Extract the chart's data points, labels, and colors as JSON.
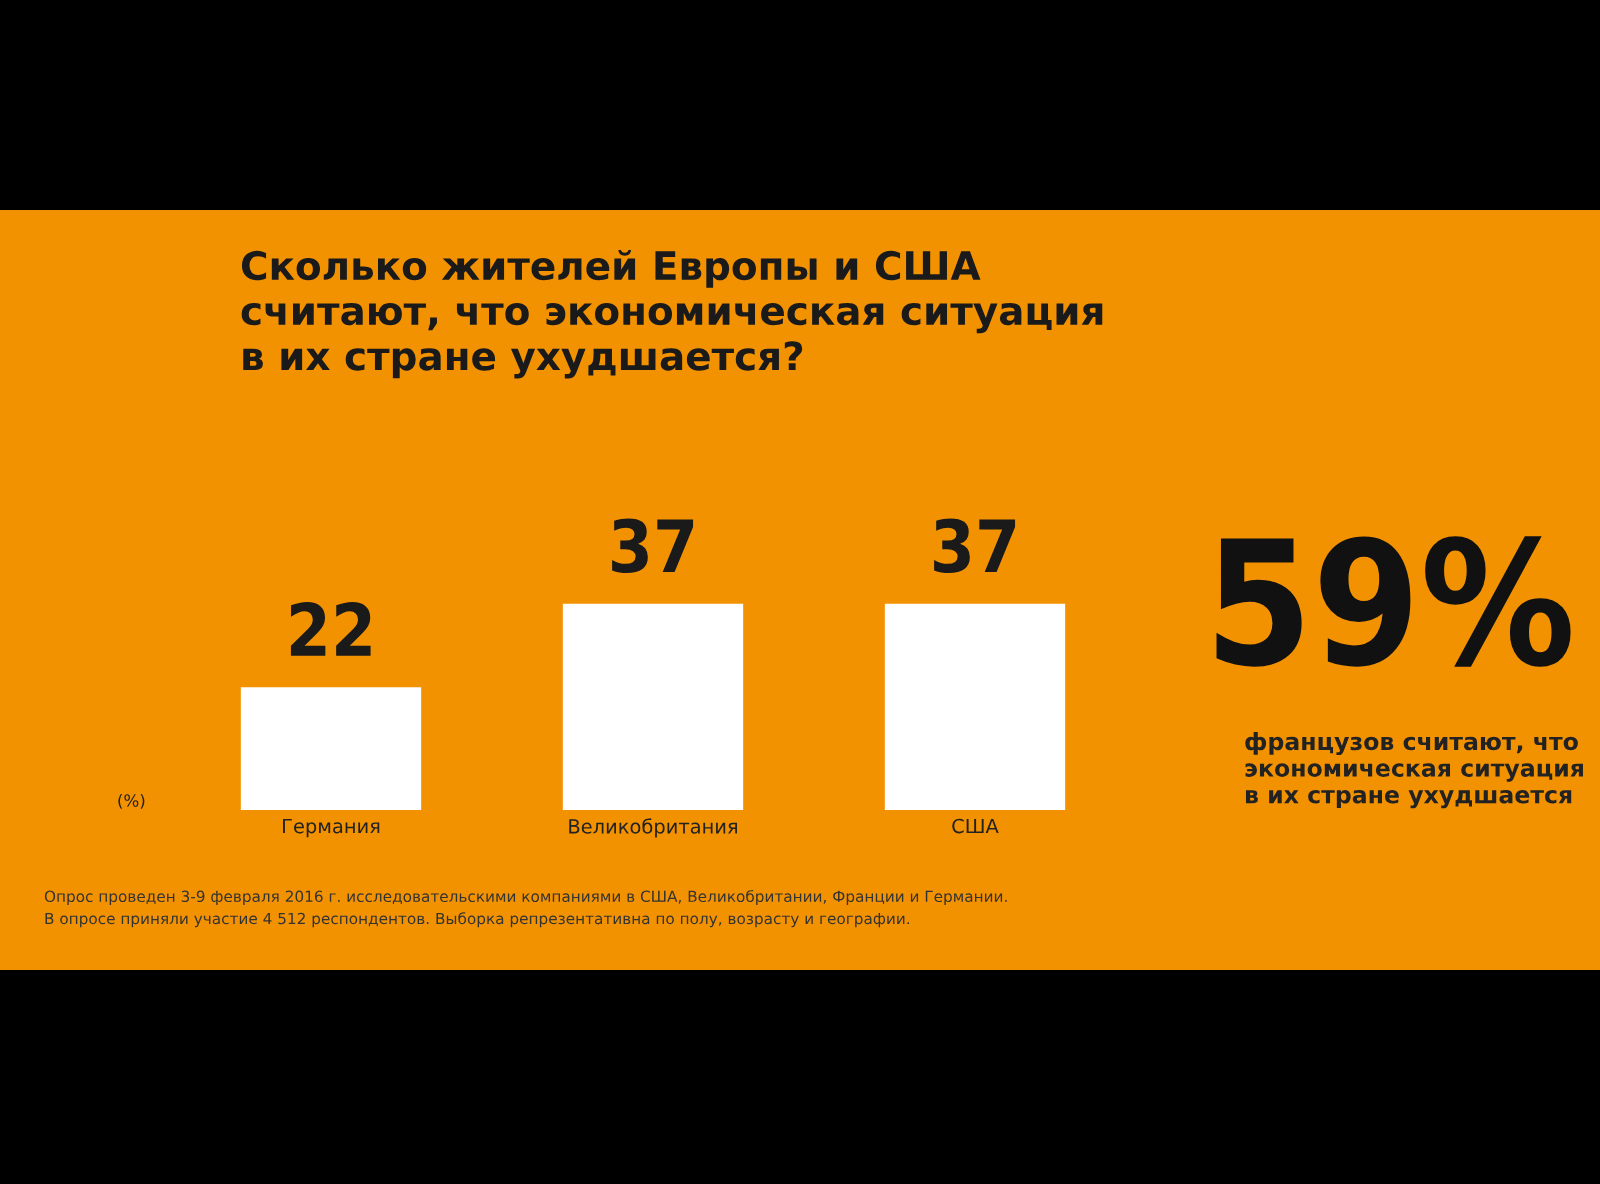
{
  "chart_data": [
    {
      "type": "bar",
      "title": "Сколько жителей Европы и США\nсчитают, что экономическая ситуация\nв их стране ухудшается?",
      "ylabel": "(%)",
      "categories": [
        "Германия",
        "Великобритания",
        "США"
      ],
      "values": [
        22,
        37,
        37
      ],
      "color": "#ffffff",
      "data_labels": true,
      "grid": false,
      "legend": false,
      "annotations": [
        "Опрос проведен 3-9 февраля 2016 г. исследовательскими компаниями в США, Великобритании, Франции и Германии.\nВ опросе приняли участие 4 512 респондентов. Выборка репрезентативна по полу, возрасту и географии."
      ]
    },
    {
      "type": "other",
      "annotations": [
        "59%",
        "французов считают, что\nэкономическая ситуация\nв их стране ухудшается"
      ]
    }
  ]
}
